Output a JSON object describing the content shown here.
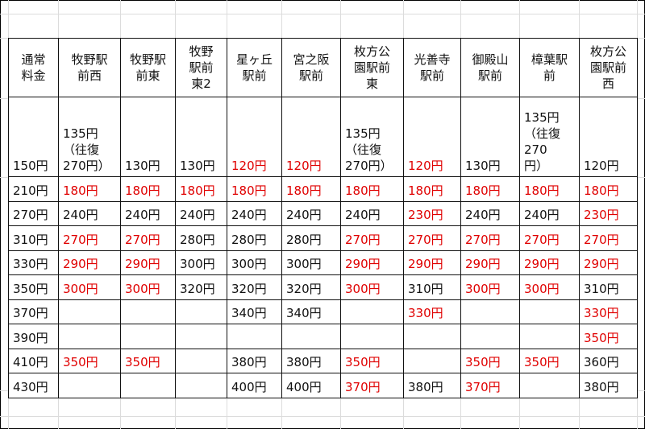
{
  "colors": {
    "accent_red": "#e00000",
    "text": "#111111",
    "grid": "#dcdcdc"
  },
  "header": [
    "通常\n料金",
    "牧野駅\n前西",
    "牧野駅\n前東",
    "牧野\n駅前\n東2",
    "星ヶ丘\n駅前",
    "宮之阪\n駅前",
    "枚方公\n園駅前\n東",
    "光善寺\n駅前",
    "御殿山\n駅前",
    "樟葉駅\n前",
    "枚方公\n園駅前\n西"
  ],
  "rows": [
    {
      "cells": [
        "150円",
        "135円\n（往復\n270円）",
        "130円",
        "130円",
        "120円",
        "120円",
        "135円\n（往復\n270円）",
        "120円",
        "130円",
        "135円\n（往復\n270\n円）",
        "120円"
      ],
      "red": [
        4,
        5,
        7
      ]
    },
    {
      "cells": [
        "210円",
        "180円",
        "180円",
        "180円",
        "180円",
        "180円",
        "180円",
        "180円",
        "180円",
        "180円",
        "180円"
      ],
      "red": [
        1,
        2,
        3,
        4,
        5,
        6,
        7,
        8,
        9,
        10
      ]
    },
    {
      "cells": [
        "270円",
        "240円",
        "240円",
        "240円",
        "240円",
        "240円",
        "240円",
        "230円",
        "240円",
        "240円",
        "230円"
      ],
      "red": [
        7,
        10
      ]
    },
    {
      "cells": [
        "310円",
        "270円",
        "270円",
        "280円",
        "280円",
        "280円",
        "270円",
        "270円",
        "270円",
        "270円",
        "270円"
      ],
      "red": [
        1,
        2,
        6,
        7,
        8,
        9,
        10
      ]
    },
    {
      "cells": [
        "330円",
        "290円",
        "290円",
        "300円",
        "300円",
        "300円",
        "290円",
        "290円",
        "290円",
        "290円",
        "290円"
      ],
      "red": [
        1,
        2,
        6,
        7,
        8,
        9,
        10
      ]
    },
    {
      "cells": [
        "350円",
        "300円",
        "300円",
        "320円",
        "320円",
        "320円",
        "300円",
        "310円",
        "300円",
        "300円",
        "310円"
      ],
      "red": [
        1,
        2,
        6,
        8,
        9
      ]
    },
    {
      "cells": [
        "370円",
        "",
        "",
        "",
        "340円",
        "340円",
        "",
        "330円",
        "",
        "",
        "330円"
      ],
      "red": [
        7,
        10
      ]
    },
    {
      "cells": [
        "390円",
        "",
        "",
        "",
        "",
        "",
        "",
        "",
        "",
        "",
        "350円"
      ],
      "red": [
        10
      ]
    },
    {
      "cells": [
        "410円",
        "350円",
        "350円",
        "",
        "380円",
        "380円",
        "350円",
        "",
        "350円",
        "350円",
        "360円"
      ],
      "red": [
        1,
        2,
        6,
        8,
        9
      ]
    },
    {
      "cells": [
        "430円",
        "",
        "",
        "",
        "400円",
        "400円",
        "370円",
        "380円",
        "370円",
        "",
        "380円"
      ],
      "red": [
        6,
        8
      ]
    }
  ]
}
